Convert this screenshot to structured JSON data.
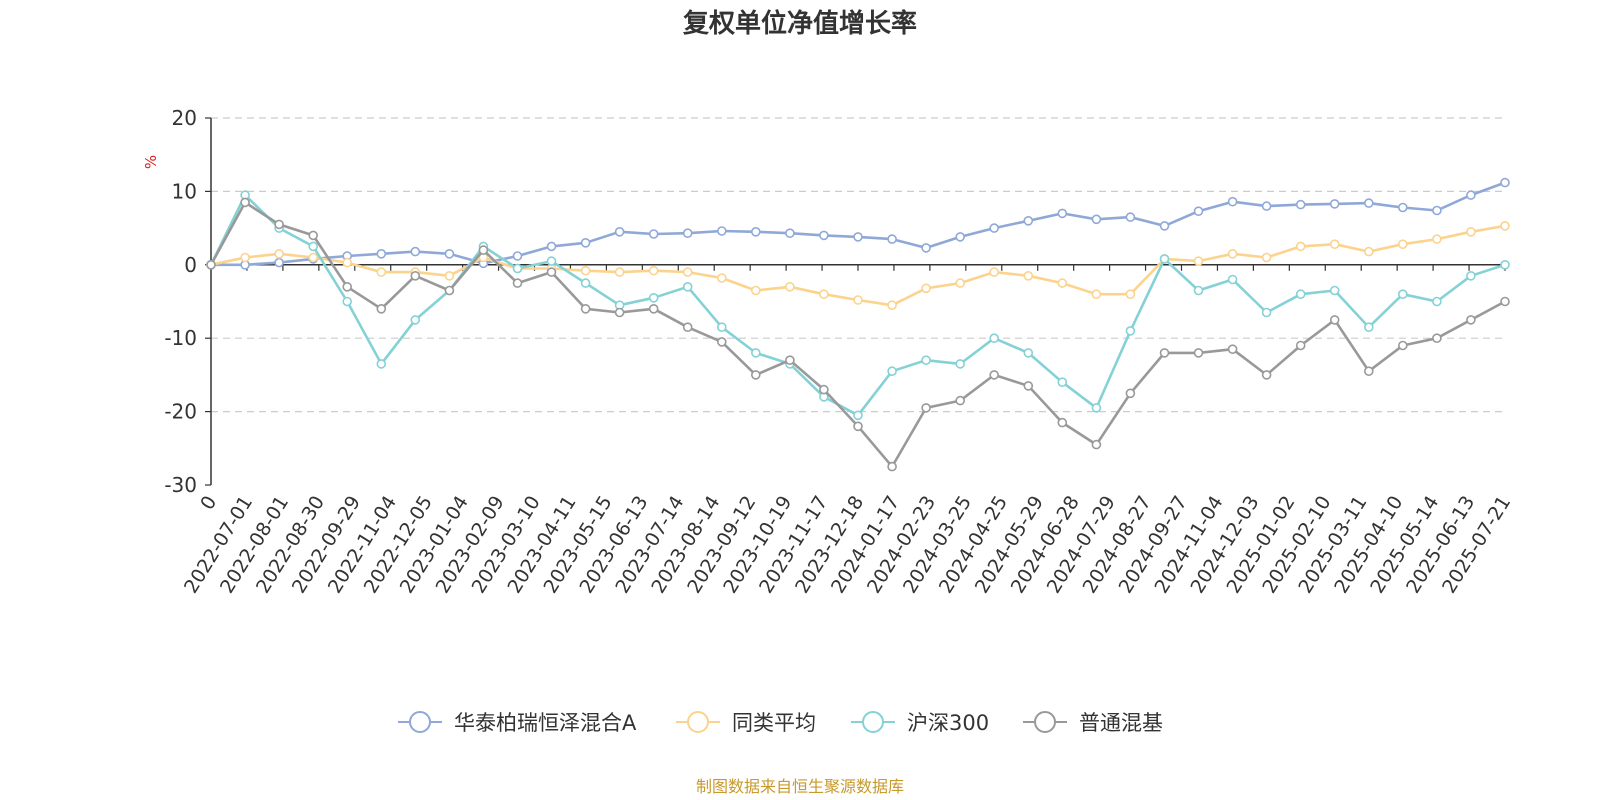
{
  "chart_data": {
    "type": "line",
    "title": "复权单位净值增长率",
    "y_unit": "%",
    "ylim": [
      -30,
      20
    ],
    "y_ticks": [
      20,
      10,
      0,
      -10,
      -20,
      -30
    ],
    "x_tick_labels": [
      "0",
      "2022-07-01",
      "2022-08-01",
      "2022-08-30",
      "2022-09-29",
      "2022-11-04",
      "2022-12-05",
      "2023-01-04",
      "2023-02-09",
      "2023-03-10",
      "2023-04-11",
      "2023-05-15",
      "2023-06-13",
      "2023-07-14",
      "2023-08-14",
      "2023-09-12",
      "2023-10-19",
      "2023-11-17",
      "2023-12-18",
      "2024-01-17",
      "2024-02-23",
      "2024-03-25",
      "2024-04-25",
      "2024-05-29",
      "2024-06-28",
      "2024-07-29",
      "2024-08-27",
      "2024-09-27",
      "2024-11-04",
      "2024-12-03",
      "2025-01-02",
      "2025-02-10",
      "2025-03-11",
      "2025-04-10",
      "2025-05-14",
      "2025-06-13",
      "2025-07-21"
    ],
    "grid": "horizontal dashed",
    "legend_position": "bottom-center",
    "series": [
      {
        "name": "华泰柏瑞恒泽混合A",
        "color": "#8fa8d8",
        "values": [
          0,
          0,
          0.3,
          0.8,
          1.2,
          1.5,
          1.8,
          1.5,
          0.2,
          1.2,
          2.5,
          3,
          4.5,
          4.2,
          4.3,
          4.6,
          4.5,
          4.3,
          4,
          3.8,
          3.5,
          2.3,
          3.8,
          5,
          6,
          7,
          6.2,
          6.5,
          5.3,
          7.3,
          8.6,
          8,
          8.2,
          8.3,
          8.4,
          7.8,
          7.4,
          9.5,
          11.2
        ]
      },
      {
        "name": "同类平均",
        "color": "#fbd38d",
        "values": [
          0,
          1,
          1.5,
          1,
          0.3,
          -1,
          -1,
          -1.5,
          1,
          -0.5,
          -0.5,
          -0.8,
          -1,
          -0.8,
          -1,
          -1.8,
          -3.5,
          -3,
          -4,
          -4.8,
          -5.5,
          -3.2,
          -2.5,
          -1,
          -1.5,
          -2.5,
          -4,
          -4,
          0.8,
          0.5,
          1.5,
          1,
          2.5,
          2.8,
          1.8,
          2.8,
          3.5,
          4.5,
          5.3
        ]
      },
      {
        "name": "沪深300",
        "color": "#84d1d6",
        "values": [
          0,
          9.5,
          5,
          2.5,
          -5,
          -13.5,
          -7.5,
          -3.5,
          2.5,
          -0.5,
          0.5,
          -2.5,
          -5.5,
          -4.5,
          -3,
          -8.5,
          -12,
          -13.5,
          -18,
          -20.5,
          -14.5,
          -13,
          -13.5,
          -10,
          -12,
          -16,
          -19.5,
          -9,
          0.8,
          -3.5,
          -2,
          -6.5,
          -4,
          -3.5,
          -8.5,
          -4,
          -5,
          -1.5,
          0
        ]
      },
      {
        "name": "普通混基",
        "color": "#999999",
        "values": [
          0,
          8.5,
          5.5,
          4,
          -3,
          -6,
          -1.5,
          -3.5,
          2,
          -2.5,
          -1,
          -6,
          -6.5,
          -6,
          -8.5,
          -10.5,
          -15,
          -13,
          -17,
          -22,
          -27.5,
          -19.5,
          -18.5,
          -15,
          -16.5,
          -21.5,
          -24.5,
          -17.5,
          -12,
          -12,
          -11.5,
          -15,
          -11,
          -7.5,
          -14.5,
          -11,
          -10,
          -7.5,
          -5
        ]
      }
    ]
  },
  "source_note": "制图数据来自恒生聚源数据库",
  "source_color": "#c8992b",
  "unit_color": "#e02020"
}
